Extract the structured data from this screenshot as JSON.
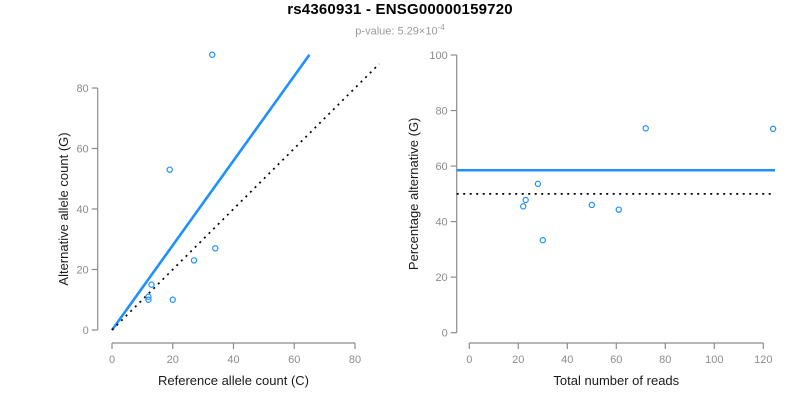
{
  "header": {
    "title": "rs4360931 - ENSG00000159720",
    "subtitle_prefix": "p-value: 5.29×10",
    "subtitle_exponent": "-4"
  },
  "colors": {
    "accent_blue": "#1E90FF",
    "dotted_black": "#000000",
    "axis_gray": "#8c8c8c",
    "tick_label_gray": "#8c8c8c",
    "axis_title_dark": "#1a1a1a",
    "subtitle_gray": "#9a9a9a"
  },
  "chart_data": [
    {
      "type": "scatter",
      "title": "",
      "xlabel": "Reference allele count (C)",
      "ylabel": "Alternative allele count (G)",
      "xlim": [
        0,
        88
      ],
      "ylim": [
        0,
        93
      ],
      "x_ticks": [
        0,
        20,
        40,
        60,
        80
      ],
      "y_ticks": [
        0,
        20,
        40,
        60,
        80
      ],
      "grid": false,
      "marker": "open-circle",
      "points": [
        [
          33,
          91
        ],
        [
          19,
          53
        ],
        [
          34,
          27
        ],
        [
          27,
          23
        ],
        [
          13,
          15
        ],
        [
          12,
          11
        ],
        [
          12,
          10
        ],
        [
          20,
          10
        ]
      ],
      "lines": [
        {
          "name": "fitted-ratio-line",
          "kind": "segment",
          "color": "blue",
          "dash": false,
          "x1": 0,
          "y1": 0,
          "x2": 65,
          "y2": 91
        },
        {
          "name": "identity-line",
          "kind": "segment",
          "color": "black",
          "dash": true,
          "x1": 0,
          "y1": 0,
          "x2": 88,
          "y2": 88
        }
      ]
    },
    {
      "type": "scatter",
      "title": "",
      "xlabel": "Total number of reads",
      "ylabel": "Percentage alternative (G)",
      "xlim": [
        0,
        125
      ],
      "ylim": [
        0,
        100
      ],
      "x_ticks": [
        0,
        20,
        40,
        60,
        80,
        100,
        120
      ],
      "y_ticks": [
        0,
        20,
        40,
        60,
        80,
        100
      ],
      "grid": false,
      "marker": "open-circle",
      "points": [
        [
          124,
          73.4
        ],
        [
          72,
          73.6
        ],
        [
          61,
          44.3
        ],
        [
          50,
          46
        ],
        [
          28,
          53.6
        ],
        [
          23,
          47.8
        ],
        [
          22,
          45.5
        ],
        [
          30,
          33.3
        ]
      ],
      "lines": [
        {
          "name": "mean-percentage-line",
          "kind": "hline",
          "color": "blue",
          "dash": false,
          "y": 58.5
        },
        {
          "name": "expected-50-percent-line",
          "kind": "hline",
          "color": "black",
          "dash": true,
          "y": 50
        }
      ]
    }
  ]
}
